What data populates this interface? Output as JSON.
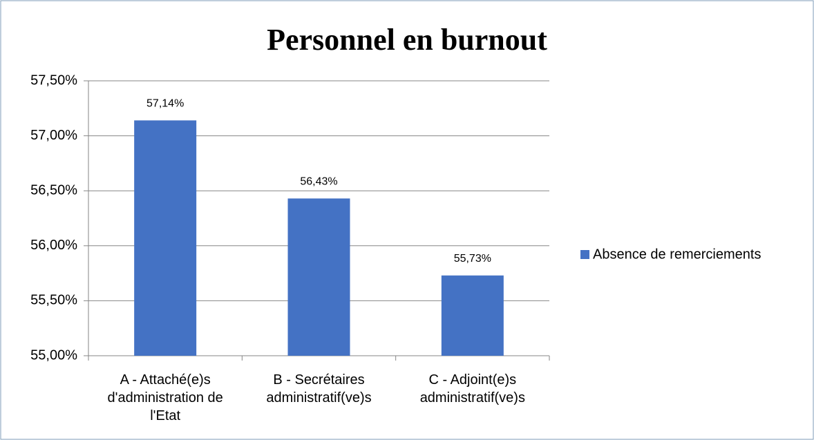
{
  "chart_data": {
    "type": "bar",
    "title": "Personnel en burnout",
    "categories": [
      "A - Attaché(e)s d'administration de l'Etat",
      "B - Secrétaires administratif(ve)s",
      "C - Adjoint(e)s administratif(ve)s"
    ],
    "series": [
      {
        "name": "Absence de remerciements",
        "color": "#4472c4",
        "values": [
          57.14,
          56.43,
          55.73
        ],
        "value_labels": [
          "57,14%",
          "56,43%",
          "55,73%"
        ]
      }
    ],
    "ylim": [
      55,
      57.5
    ],
    "yticks": [
      {
        "value": 55,
        "label": "55,00%"
      },
      {
        "value": 55.5,
        "label": "55,50%"
      },
      {
        "value": 56,
        "label": "56,00%"
      },
      {
        "value": 56.5,
        "label": "56,50%"
      },
      {
        "value": 57,
        "label": "57,00%"
      },
      {
        "value": 57.5,
        "label": "57,50%"
      }
    ],
    "grid": true,
    "legend": "right"
  }
}
